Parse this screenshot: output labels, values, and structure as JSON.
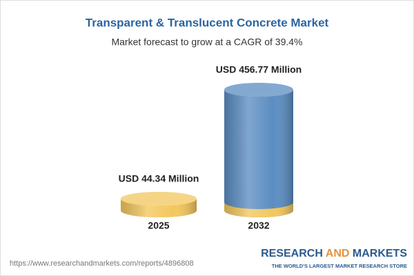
{
  "chart_data": {
    "type": "cylinder",
    "title": "Transparent & Translucent Concrete Market",
    "subtitle": "Market forecast to grow at a CAGR of 39.4%",
    "categories": [
      "2025",
      "2032"
    ],
    "values": [
      44.34,
      456.77
    ],
    "value_labels": [
      "USD 44.34 Million",
      "USD 456.77 Million"
    ],
    "colors": [
      "#f2c75c",
      "#5b8dc2"
    ],
    "base_color": "#f2c75c"
  },
  "footer": {
    "url": "https://www.researchandmarkets.com/reports/4896808",
    "logo": [
      "RESEARCH",
      "AND",
      "MARKETS"
    ],
    "tagline": "THE WORLD'S LARGEST MARKET RESEARCH STORE"
  }
}
